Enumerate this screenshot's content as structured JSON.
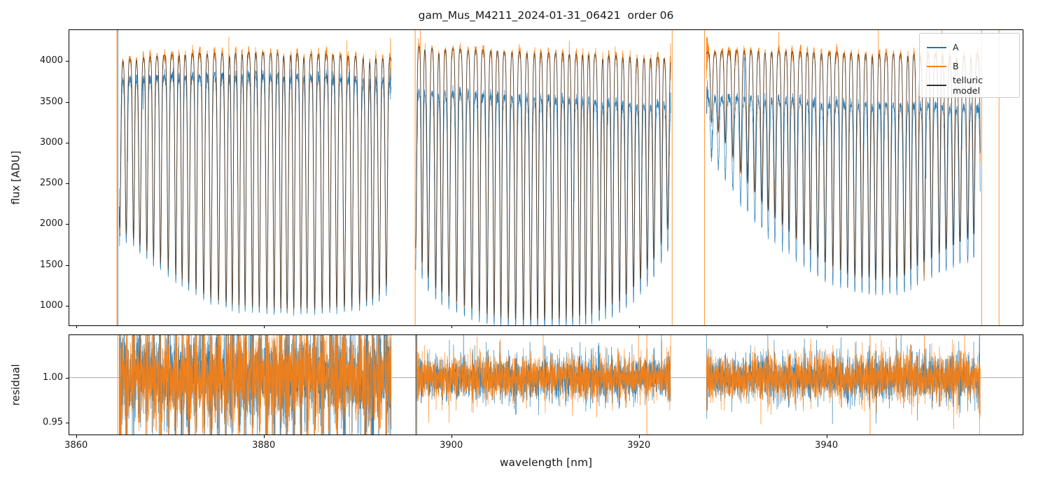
{
  "chart_data": {
    "type": "line",
    "title": "gam_Mus_M4211_2024-01-31_06421  order 06",
    "xlabel": "wavelength [nm]",
    "series": [
      {
        "name": "A",
        "color": "#1f77b4"
      },
      {
        "name": "B",
        "color": "#ff7f0e"
      },
      {
        "name": "telluric model",
        "color": "#333333"
      }
    ],
    "panels": [
      {
        "name": "flux",
        "ylabel": "flux [ADU]",
        "ylim": [
          750,
          4390
        ],
        "yticks": [
          {
            "v": 1000,
            "label": "1000"
          },
          {
            "v": 1500,
            "label": "1500"
          },
          {
            "v": 2000,
            "label": "2000"
          },
          {
            "v": 2500,
            "label": "2500"
          },
          {
            "v": 3000,
            "label": "3000"
          },
          {
            "v": 3500,
            "label": "3500"
          },
          {
            "v": 4000,
            "label": "4000"
          }
        ]
      },
      {
        "name": "residual",
        "ylabel": "residual",
        "ylim": [
          0.936,
          1.048
        ],
        "yticks": [
          {
            "v": 0.95,
            "label": "0.95"
          },
          {
            "v": 1.0,
            "label": "1.00"
          }
        ],
        "reference_line": 1.0
      }
    ],
    "xlim": [
      3859.2,
      3961.0
    ],
    "xticks": [
      {
        "v": 3860,
        "label": "3860"
      },
      {
        "v": 3880,
        "label": "3880"
      },
      {
        "v": 3900,
        "label": "3900"
      },
      {
        "v": 3920,
        "label": "3920"
      },
      {
        "v": 3940,
        "label": "3940"
      }
    ],
    "segments": [
      [
        3864.6,
        3893.6
      ],
      [
        3896.2,
        3923.4
      ],
      [
        3927.2,
        3956.4
      ]
    ],
    "telluric_lines": {
      "start": 3862.5,
      "end": 3957.5,
      "spacing_nm": 0.72,
      "width_nm": 0.105
    },
    "depth_envelope": [
      [
        3862,
        0.55
      ],
      [
        3865,
        0.48
      ],
      [
        3868,
        0.4
      ],
      [
        3871,
        0.33
      ],
      [
        3874,
        0.27
      ],
      [
        3877,
        0.245
      ],
      [
        3881,
        0.235
      ],
      [
        3885,
        0.235
      ],
      [
        3889,
        0.243
      ],
      [
        3892,
        0.27
      ],
      [
        3894,
        0.34
      ],
      [
        3896,
        0.42
      ],
      [
        3898,
        0.3
      ],
      [
        3901,
        0.245
      ],
      [
        3904,
        0.215
      ],
      [
        3908,
        0.2
      ],
      [
        3912,
        0.205
      ],
      [
        3915,
        0.22
      ],
      [
        3918,
        0.26
      ],
      [
        3920,
        0.32
      ],
      [
        3922,
        0.41
      ],
      [
        3924,
        0.55
      ],
      [
        3927,
        0.82
      ],
      [
        3929,
        0.74
      ],
      [
        3931,
        0.63
      ],
      [
        3934,
        0.52
      ],
      [
        3937,
        0.44
      ],
      [
        3940,
        0.37
      ],
      [
        3943,
        0.335
      ],
      [
        3946,
        0.325
      ],
      [
        3948,
        0.335
      ],
      [
        3950,
        0.37
      ],
      [
        3953,
        0.42
      ],
      [
        3957,
        0.48
      ]
    ],
    "continuum_B": [
      [
        3859,
        3960
      ],
      [
        3864,
        4000
      ],
      [
        3868,
        4060
      ],
      [
        3874,
        4100
      ],
      [
        3880,
        4110
      ],
      [
        3886,
        4090
      ],
      [
        3890,
        4070
      ],
      [
        3893.6,
        4050
      ],
      [
        3896.2,
        4190
      ],
      [
        3899,
        4160
      ],
      [
        3904,
        4130
      ],
      [
        3910,
        4110
      ],
      [
        3916,
        4080
      ],
      [
        3920,
        4060
      ],
      [
        3923.4,
        4040
      ],
      [
        3927.2,
        4110
      ],
      [
        3932,
        4140
      ],
      [
        3938,
        4110
      ],
      [
        3944,
        4100
      ],
      [
        3950,
        4090
      ],
      [
        3957,
        4070
      ]
    ],
    "A_to_B_ratio": [
      [
        3859,
        0.945
      ],
      [
        3866,
        0.94
      ],
      [
        3874,
        0.935
      ],
      [
        3882,
        0.932
      ],
      [
        3890,
        0.932
      ],
      [
        3893.6,
        0.93
      ],
      [
        3896.2,
        0.872
      ],
      [
        3904,
        0.868
      ],
      [
        3912,
        0.862
      ],
      [
        3920,
        0.858
      ],
      [
        3923.4,
        0.856
      ],
      [
        3927.2,
        0.862
      ],
      [
        3934,
        0.856
      ],
      [
        3942,
        0.85
      ],
      [
        3950,
        0.848
      ],
      [
        3957,
        0.846
      ]
    ],
    "noise": {
      "flux_sigma": 0.01,
      "residual_sigma": [
        0.02,
        0.01,
        0.011
      ],
      "core_amplification": [
        2.5,
        0.8,
        0.8
      ]
    },
    "edge_spikes_flux": [
      {
        "x": 3864.35,
        "colors": [
          "#ff7f0e",
          "#1f77b4"
        ]
      },
      {
        "x": 3896.15,
        "colors": [
          "#ff7f0e"
        ]
      },
      {
        "x": 3923.55,
        "colors": [
          "#ff7f0e"
        ]
      },
      {
        "x": 3927.0,
        "colors": [
          "#ff7f0e"
        ]
      },
      {
        "x": 3956.55,
        "colors": [
          "#ff7f0e"
        ]
      },
      {
        "x": 3958.4,
        "colors": [
          "#ff7f0e"
        ]
      }
    ],
    "edge_spikes_residual": [
      {
        "x": 3864.45,
        "colors": [
          "#ff7f0e"
        ]
      },
      {
        "x": 3896.25,
        "colors": [
          "#1f77b4",
          "#ff7f0e"
        ]
      },
      {
        "x": 3920.85,
        "colors": [
          "#ff7f0e"
        ]
      },
      {
        "x": 3944.65,
        "colors": [
          "#ff7f0e"
        ]
      }
    ]
  }
}
